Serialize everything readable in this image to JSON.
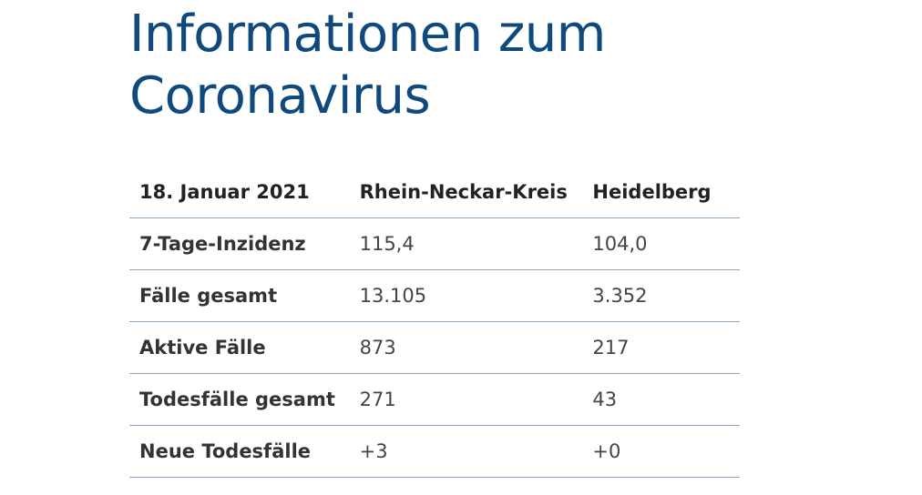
{
  "page": {
    "title": "Informationen zum Coronavirus"
  },
  "table": {
    "headers": [
      "18. Januar 2021",
      "Rhein-Neckar-Kreis",
      "Heidelberg"
    ],
    "rows": [
      {
        "label": "7-Tage-Inzidenz",
        "rnk": "115,4",
        "heidelberg": "104,0"
      },
      {
        "label": "Fälle gesamt",
        "rnk": "13.105",
        "heidelberg": "3.352"
      },
      {
        "label": "Aktive Fälle",
        "rnk": "873",
        "heidelberg": "217"
      },
      {
        "label": "Todesfälle gesamt",
        "rnk": "271",
        "heidelberg": "43"
      },
      {
        "label": "Neue Todesfälle",
        "rnk": "+3",
        "heidelberg": "+0"
      }
    ]
  },
  "colors": {
    "title": "#0e4a7e",
    "divider": "#8ea6bf",
    "text": "#333333"
  }
}
